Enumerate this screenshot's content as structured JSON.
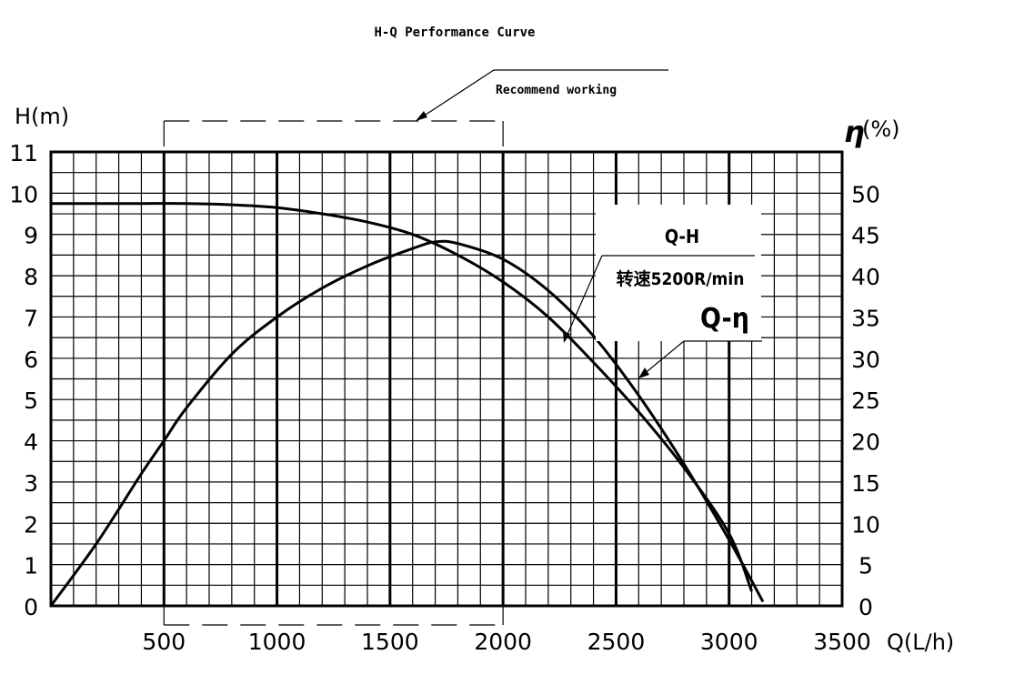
{
  "chart_data": {
    "type": "line",
    "title": "H-Q Performance Curve",
    "annotation": "Recommend working",
    "recommended_range": [
      500,
      2000
    ],
    "xlabel": "Q(L/h)",
    "ylabel_left": "H(m)",
    "ylabel_right_symbol": "η",
    "ylabel_right_unit": "(%)",
    "xlim": [
      0,
      3500
    ],
    "ylim_left": [
      0,
      11
    ],
    "ylim_right": [
      0,
      55
    ],
    "x_ticks": [
      "500",
      "1000",
      "1500",
      "2000",
      "2500",
      "3000",
      "3500"
    ],
    "y_left_ticks": [
      "0",
      "1",
      "2",
      "3",
      "4",
      "5",
      "6",
      "7",
      "8",
      "9",
      "10",
      "11"
    ],
    "y_right_ticks": [
      "0",
      "5",
      "10",
      "15",
      "20",
      "25",
      "30",
      "35",
      "40",
      "45",
      "50"
    ],
    "grid": true,
    "series": [
      {
        "name": "Q-H",
        "axis": "left",
        "x": [
          0,
          200,
          400,
          600,
          800,
          1000,
          1200,
          1400,
          1600,
          1800,
          2000,
          2200,
          2400,
          2600,
          2800,
          3000,
          3100
        ],
        "y": [
          9.75,
          9.75,
          9.75,
          9.75,
          9.72,
          9.65,
          9.5,
          9.3,
          9.0,
          8.5,
          7.85,
          7.0,
          5.9,
          4.7,
          3.35,
          1.75,
          0.35
        ]
      },
      {
        "name": "Q-η",
        "axis": "right",
        "x": [
          0,
          200,
          400,
          500,
          600,
          800,
          1000,
          1200,
          1400,
          1600,
          1700,
          1800,
          2000,
          2200,
          2400,
          2600,
          2800,
          3000,
          3150
        ],
        "y": [
          0,
          7.5,
          16,
          20,
          24,
          30.5,
          35,
          38.5,
          41.2,
          43.3,
          44.1,
          43.9,
          42,
          38.2,
          32.7,
          25.5,
          17.2,
          8,
          0.5
        ]
      }
    ],
    "legend_labels": {
      "qh": "Q-H",
      "speed": "转速5200R/min",
      "qeta": "Q-η"
    }
  }
}
